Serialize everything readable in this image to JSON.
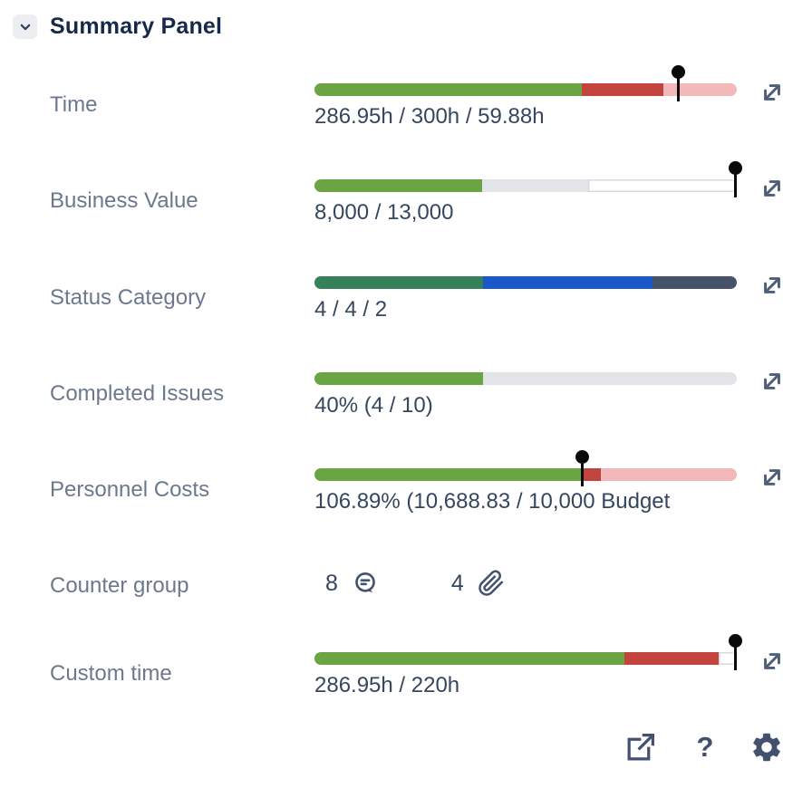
{
  "header": {
    "title": "Summary Panel"
  },
  "rows": [
    {
      "id": "time",
      "label": "Time",
      "value_text": "286.95h / 300h / 59.88h",
      "bar": {
        "segments": [
          {
            "name": "within-estimate",
            "color": "#6BA442",
            "pct": 63.3
          },
          {
            "name": "overrun",
            "color": "#C3443E",
            "pct": 19.4
          },
          {
            "name": "remaining",
            "color": "#F3B8BA",
            "pct": 17.3
          }
        ],
        "pin_pct": 86.2
      }
    },
    {
      "id": "business-value",
      "label": "Business Value",
      "value_text": "8,000 / 13,000",
      "bar": {
        "segments": [
          {
            "name": "achieved",
            "color": "#6BA442",
            "pct": 39.8
          },
          {
            "name": "planned",
            "color": "#E2E4E8",
            "pct": 25.0
          },
          {
            "name": "open",
            "color": "#FFFFFF",
            "pct": 35.2,
            "outlined": true
          }
        ],
        "pin_pct": 99.7
      }
    },
    {
      "id": "status-category",
      "label": "Status Category",
      "value_text": "4 / 4 / 2",
      "bar": {
        "segments": [
          {
            "name": "done",
            "color": "#35815A",
            "pct": 40
          },
          {
            "name": "in-progress",
            "color": "#1D58CB",
            "pct": 40
          },
          {
            "name": "to-do",
            "color": "#46516A",
            "pct": 20
          }
        ]
      }
    },
    {
      "id": "completed-issues",
      "label": "Completed Issues",
      "value_text": "40% (4 / 10)",
      "bar": {
        "segments": [
          {
            "name": "completed",
            "color": "#6BA442",
            "pct": 40
          },
          {
            "name": "remaining",
            "color": "#E2E4E8",
            "pct": 60
          }
        ]
      }
    },
    {
      "id": "personnel-costs",
      "label": "Personnel Costs",
      "value_text": "106.89% (10,688.83 / 10,000 Budget)",
      "bar": {
        "segments": [
          {
            "name": "within-budget",
            "color": "#6BA442",
            "pct": 63.3
          },
          {
            "name": "overrun",
            "color": "#C3443E",
            "pct": 4.6
          },
          {
            "name": "remaining",
            "color": "#F3B8BA",
            "pct": 32.1
          }
        ],
        "pin_pct": 63.4
      }
    },
    {
      "id": "counter-group",
      "label": "Counter group",
      "counters": [
        {
          "value": "8",
          "icon": "comment-icon"
        },
        {
          "value": "4",
          "icon": "attachment-icon"
        }
      ]
    },
    {
      "id": "custom-time",
      "label": "Custom time",
      "value_text": "286.95h / 220h",
      "bar": {
        "segments": [
          {
            "name": "within-estimate",
            "color": "#6BA442",
            "pct": 73.3
          },
          {
            "name": "overrun",
            "color": "#C3443E",
            "pct": 22.4
          },
          {
            "name": "remaining",
            "color": "#FFFFFF",
            "pct": 4.3,
            "outlined": true
          }
        ],
        "pin_pct": 99.7
      }
    }
  ],
  "footer": {
    "help_label": "?"
  },
  "colors": {
    "title": "#17294A",
    "label": "#6C788E",
    "value": "#35465F",
    "icon": "#42526E",
    "pin": "#0A0A0A",
    "green": "#6BA442",
    "red": "#C3443E",
    "pink": "#F3B8BA",
    "status_green": "#35815A",
    "status_blue": "#1D58CB",
    "status_slate": "#46516A",
    "track_gray": "#E2E4E8"
  }
}
